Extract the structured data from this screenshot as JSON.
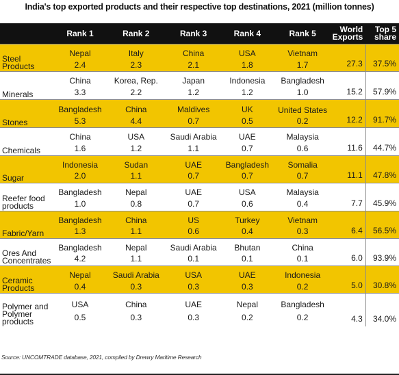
{
  "chart_data": {
    "type": "table",
    "title": "India's top exported products and their respective top destinations, 2021 (million tonnes)",
    "columns": [
      "",
      "Rank 1",
      "Rank 2",
      "Rank 3",
      "Rank 4",
      "Rank 5",
      "World Exports",
      "Top 5 share"
    ],
    "rows": [
      {
        "product": "Steel Products",
        "destinations": [
          "Nepal",
          "Italy",
          "China",
          "USA",
          "Vietnam"
        ],
        "values": [
          "2.4",
          "2.3",
          "2.1",
          "1.8",
          "1.7"
        ],
        "world_exports": "27.3",
        "top5_share": "37.5%"
      },
      {
        "product": "Minerals",
        "destinations": [
          "China",
          "Korea, Rep.",
          "Japan",
          "Indonesia",
          "Bangladesh"
        ],
        "values": [
          "3.3",
          "2.2",
          "1.2",
          "1.2",
          "1.0"
        ],
        "world_exports": "15.2",
        "top5_share": "57.9%"
      },
      {
        "product": "Stones",
        "destinations": [
          "Bangladesh",
          "China",
          "Maldives",
          "UK",
          "United States"
        ],
        "values": [
          "5.3",
          "4.4",
          "0.7",
          "0.5",
          "0.2"
        ],
        "world_exports": "12.2",
        "top5_share": "91.7%"
      },
      {
        "product": "Chemicals",
        "destinations": [
          "China",
          "USA",
          "Saudi Arabia",
          "UAE",
          "Malaysia"
        ],
        "values": [
          "1.6",
          "1.2",
          "1.1",
          "0.7",
          "0.6"
        ],
        "world_exports": "11.6",
        "top5_share": "44.7%"
      },
      {
        "product": "Sugar",
        "destinations": [
          "Indonesia",
          "Sudan",
          "UAE",
          "Bangladesh",
          "Somalia"
        ],
        "values": [
          "2.0",
          "1.1",
          "0.7",
          "0.7",
          "0.7"
        ],
        "world_exports": "11.1",
        "top5_share": "47.8%"
      },
      {
        "product": "Reefer food products",
        "destinations": [
          "Bangladesh",
          "Nepal",
          "UAE",
          "USA",
          "Malaysia"
        ],
        "values": [
          "1.0",
          "0.8",
          "0.7",
          "0.6",
          "0.4"
        ],
        "world_exports": "7.7",
        "top5_share": "45.9%"
      },
      {
        "product": "Fabric/Yarn",
        "destinations": [
          "Bangladesh",
          "China",
          "US",
          "Turkey",
          "Vietnam"
        ],
        "values": [
          "1.3",
          "1.1",
          "0.6",
          "0.4",
          "0.3"
        ],
        "world_exports": "6.4",
        "top5_share": "56.5%"
      },
      {
        "product": "Ores And Concentrates",
        "destinations": [
          "Bangladesh",
          "Nepal",
          "Saudi Arabia",
          "Bhutan",
          "China"
        ],
        "values": [
          "4.2",
          "1.1",
          "0.1",
          "0.1",
          "0.1"
        ],
        "world_exports": "6.0",
        "top5_share": "93.9%"
      },
      {
        "product": "Ceramic Products",
        "destinations": [
          "Nepal",
          "Saudi Arabia",
          "USA",
          "UAE",
          "Indonesia"
        ],
        "values": [
          "0.4",
          "0.3",
          "0.3",
          "0.3",
          "0.2"
        ],
        "world_exports": "5.0",
        "top5_share": "30.8%"
      },
      {
        "product": "Polymer and Polymer products",
        "destinations": [
          "USA",
          "China",
          "UAE",
          "Nepal",
          "Bangladesh"
        ],
        "values": [
          "0.5",
          "0.3",
          "0.3",
          "0.2",
          "0.2"
        ],
        "world_exports": "4.3",
        "top5_share": "34.0%"
      }
    ],
    "row_colors": [
      "#f2c500",
      "#ffffff"
    ],
    "header_color": "#111111",
    "source": "Source: UNCOMTRADE database, 2021, compiled by Drewry Maritime Research"
  }
}
